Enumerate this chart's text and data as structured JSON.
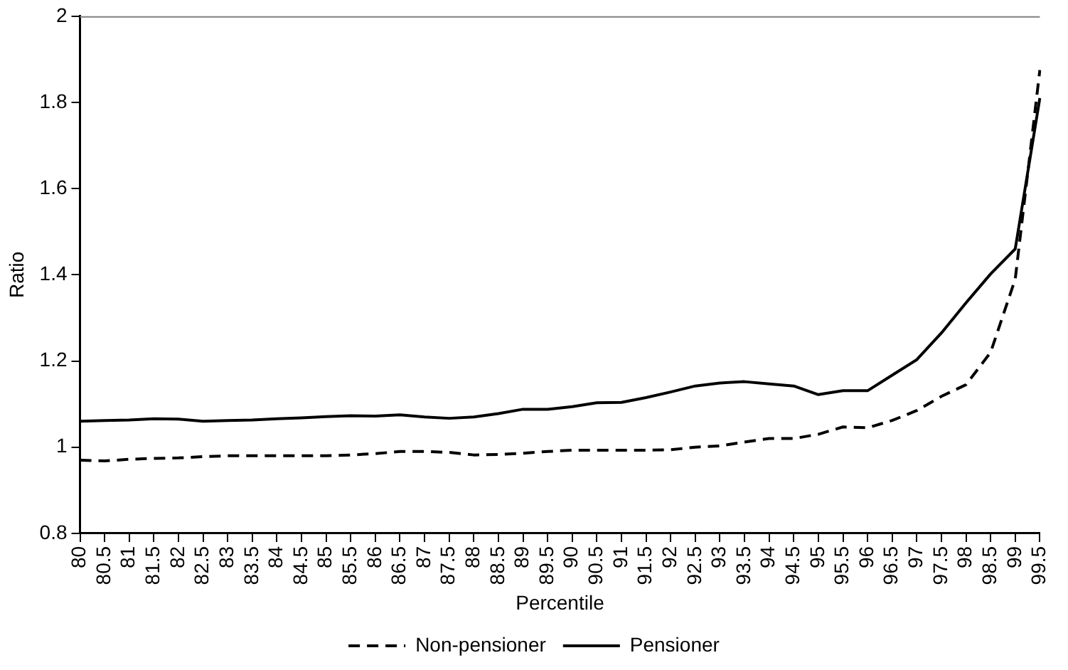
{
  "chart_data": {
    "type": "line",
    "xlabel": "Percentile",
    "ylabel": "Ratio",
    "categories": [
      "80",
      "80.5",
      "81",
      "81.5",
      "82",
      "82.5",
      "83",
      "83.5",
      "84",
      "84.5",
      "85",
      "85.5",
      "86",
      "86.5",
      "87",
      "87.5",
      "88",
      "88.5",
      "89",
      "89.5",
      "90",
      "90.5",
      "91",
      "91.5",
      "92",
      "92.5",
      "93",
      "93.5",
      "94",
      "94.5",
      "95",
      "95.5",
      "96",
      "96.5",
      "97",
      "97.5",
      "98",
      "98.5",
      "99",
      "99.5"
    ],
    "series": [
      {
        "name": "Non-pensioner",
        "color": "#000000",
        "line_style": "dashed",
        "values": [
          0.97,
          0.968,
          0.972,
          0.974,
          0.975,
          0.978,
          0.98,
          0.98,
          0.98,
          0.98,
          0.98,
          0.982,
          0.985,
          0.99,
          0.99,
          0.988,
          0.982,
          0.983,
          0.986,
          0.99,
          0.993,
          0.993,
          0.993,
          0.993,
          0.994,
          1.0,
          1.003,
          1.012,
          1.02,
          1.02,
          1.03,
          1.047,
          1.045,
          1.062,
          1.085,
          1.118,
          1.145,
          1.22,
          1.39,
          1.875
        ]
      },
      {
        "name": "Pensioner",
        "color": "#000000",
        "line_style": "solid",
        "values": [
          1.06,
          1.062,
          1.063,
          1.066,
          1.065,
          1.06,
          1.062,
          1.063,
          1.066,
          1.068,
          1.071,
          1.073,
          1.072,
          1.075,
          1.07,
          1.067,
          1.07,
          1.078,
          1.088,
          1.088,
          1.094,
          1.103,
          1.104,
          1.115,
          1.128,
          1.142,
          1.149,
          1.152,
          1.147,
          1.142,
          1.122,
          1.131,
          1.131,
          1.167,
          1.203,
          1.265,
          1.335,
          1.402,
          1.46,
          1.81
        ]
      }
    ],
    "ylim": [
      0.8,
      2
    ],
    "yticks": [
      0.8,
      1,
      1.2,
      1.4,
      1.6,
      1.8,
      2
    ],
    "grid": false,
    "legend": "bottom",
    "marker": "none"
  }
}
